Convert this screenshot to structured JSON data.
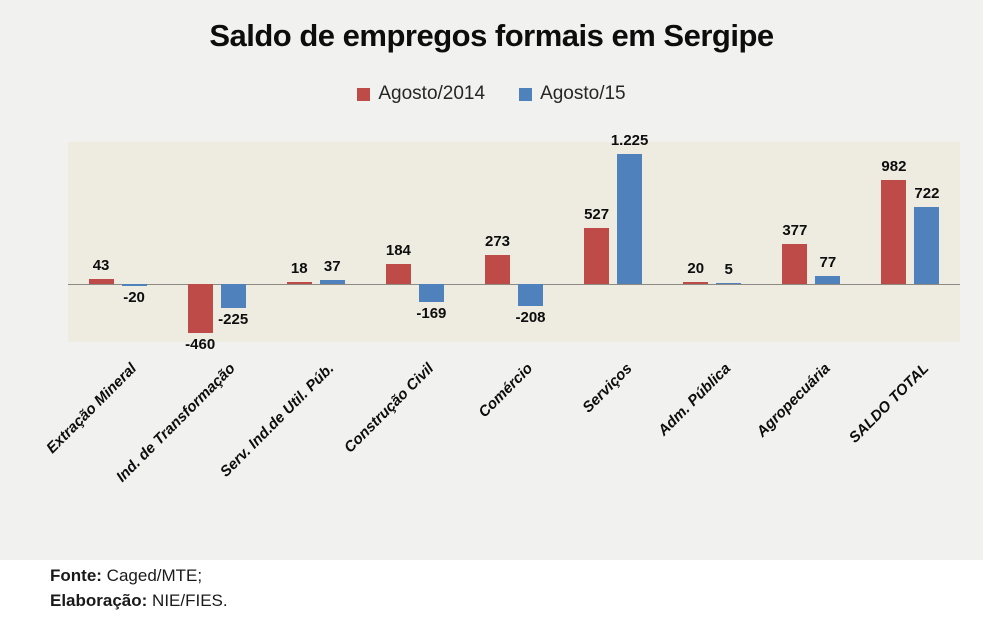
{
  "title": "Saldo de empregos formais em Sergipe",
  "legend": [
    {
      "label": "Agosto/2014",
      "color": "#BE4B48"
    },
    {
      "label": "Agosto/15",
      "color": "#4F81BD"
    }
  ],
  "footer": {
    "fonte_label": "Fonte:",
    "fonte_value": "Caged/MTE;",
    "elaboracao_label": "Elaboração:",
    "elaboracao_value": "NIE/FIES."
  },
  "chart_data": {
    "type": "bar",
    "title": "Saldo de empregos formais em Sergipe",
    "categories": [
      "Extração Mineral",
      "Ind. de Transformação",
      "Serv. Ind.de Util. Púb.",
      "Construção Civil",
      "Comércio",
      "Serviços",
      "Adm. Pública",
      "Agropecuária",
      "SALDO TOTAL"
    ],
    "series": [
      {
        "name": "Agosto/2014",
        "color": "#BE4B48",
        "values": [
          43,
          -460,
          18,
          184,
          273,
          527,
          20,
          377,
          982
        ]
      },
      {
        "name": "Agosto/15",
        "color": "#4F81BD",
        "values": [
          -20,
          -225,
          37,
          -169,
          -208,
          1225,
          5,
          77,
          722
        ]
      }
    ],
    "value_labels": [
      [
        "43",
        "-460",
        "18",
        "184",
        "273",
        "527",
        "20",
        "377",
        "982"
      ],
      [
        "-20",
        "-225",
        "37",
        "-169",
        "-208",
        "1.225",
        "5",
        "77",
        "722"
      ]
    ],
    "xlabel": "",
    "ylabel": "",
    "ylim": [
      -560,
      1400
    ],
    "grid": false,
    "legend_position": "top",
    "plot_background": "#EEECE1",
    "page_background": "#F1F1F0",
    "axis_line_color": "#8C8A82"
  }
}
